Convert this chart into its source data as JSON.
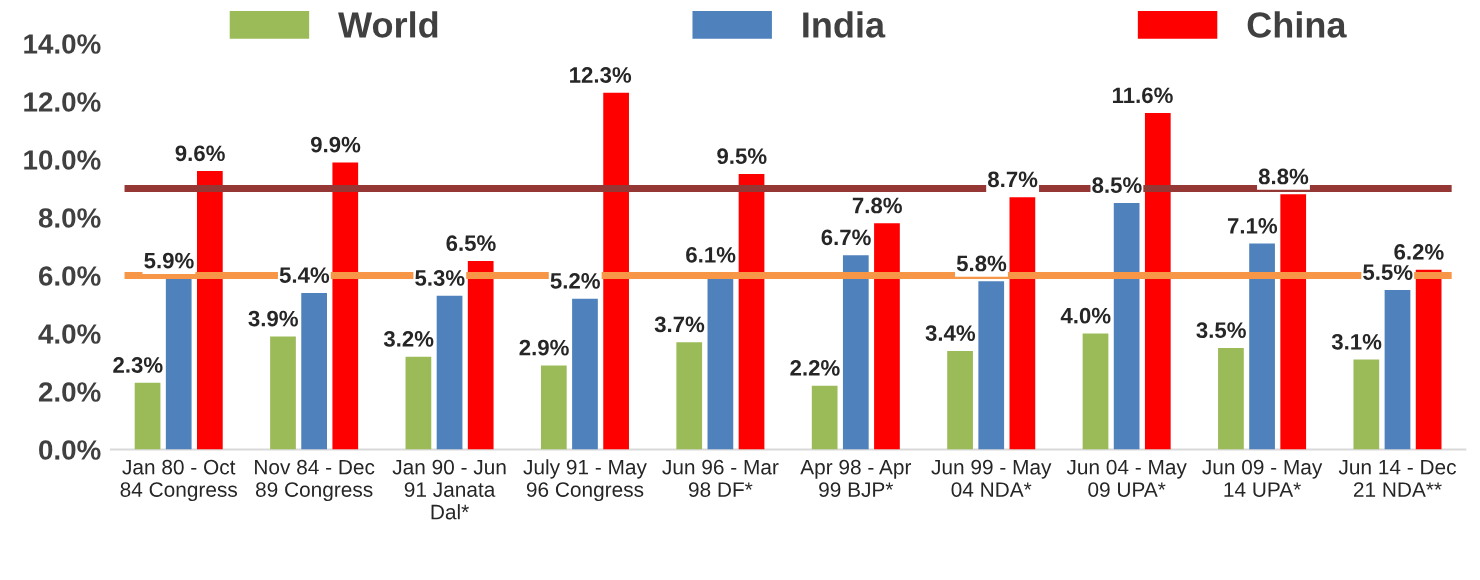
{
  "chart_data": {
    "type": "bar",
    "categories": [
      "Jan 80 - Oct\n84 Congress",
      "Nov 84 - Dec\n89 Congress",
      "Jan 90 - Jun\n91 Janata\nDal*",
      "July 91 - May\n96 Congress",
      "Jun 96 - Mar\n98 DF*",
      "Apr 98 - Apr\n99 BJP*",
      "Jun 99 - May\n04 NDA*",
      "Jun 04 - May\n09 UPA*",
      "Jun 09 - May\n14 UPA*",
      "Jun 14 - Dec\n21 NDA**"
    ],
    "series": [
      {
        "name": "World",
        "color": "#9bbb59",
        "values": [
          2.3,
          3.9,
          3.2,
          2.9,
          3.7,
          2.2,
          3.4,
          4.0,
          3.5,
          3.1
        ]
      },
      {
        "name": "India",
        "color": "#4f81bd",
        "values": [
          5.9,
          5.4,
          5.3,
          5.2,
          6.1,
          6.7,
          5.8,
          8.5,
          7.1,
          5.5
        ]
      },
      {
        "name": "China",
        "color": "#ff0000",
        "values": [
          9.6,
          9.9,
          6.5,
          12.3,
          9.5,
          7.8,
          8.7,
          11.6,
          8.8,
          6.2
        ]
      }
    ],
    "ylim": [
      0,
      14
    ],
    "yticks": [
      {
        "value": 0,
        "label": "0.0%"
      },
      {
        "value": 2,
        "label": "2.0%"
      },
      {
        "value": 4,
        "label": "4.0%"
      },
      {
        "value": 6,
        "label": "6.0%"
      },
      {
        "value": 8,
        "label": "8.0%"
      },
      {
        "value": 10,
        "label": "10.0%"
      },
      {
        "value": 12,
        "label": "12.0%"
      },
      {
        "value": 14,
        "label": "14.0%"
      }
    ],
    "value_labels": [
      [
        "2.3%",
        "3.9%",
        "3.2%",
        "2.9%",
        "3.7%",
        "2.2%",
        "3.4%",
        "4.0%",
        "3.5%",
        "3.1%"
      ],
      [
        "5.9%",
        "5.4%",
        "5.3%",
        "5.2%",
        "6.1%",
        "6.7%",
        "5.8%",
        "8.5%",
        "7.1%",
        "5.5%"
      ],
      [
        "9.6%",
        "9.9%",
        "6.5%",
        "12.3%",
        "9.5%",
        "7.8%",
        "8.7%",
        "11.6%",
        "8.8%",
        "6.2%"
      ]
    ],
    "ref_lines": [
      {
        "axis": "y",
        "value": 9.0,
        "color": "#953735",
        "line_style": "solid"
      },
      {
        "axis": "y",
        "value": 6.0,
        "color": "#f79646",
        "line_style": "solid"
      }
    ],
    "grid": false,
    "legend": "top"
  }
}
